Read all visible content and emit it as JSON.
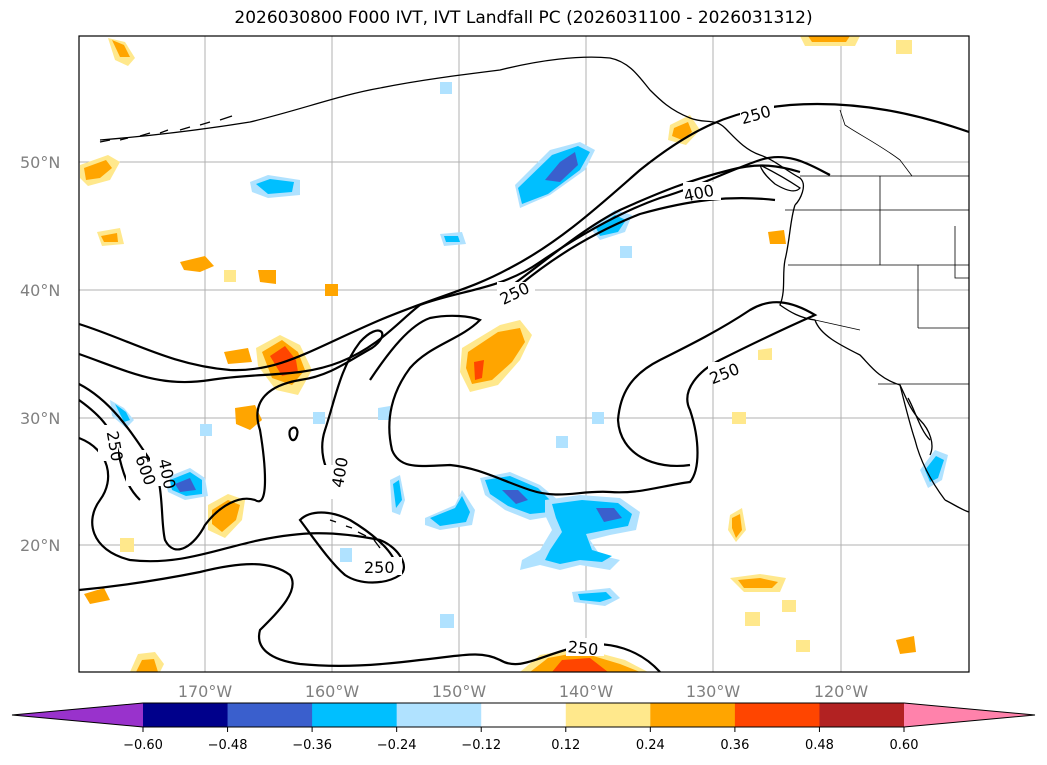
{
  "title": "2026030800 F000 IVT, IVT Landfall PC (2026031100 - 2026031312)",
  "lat_labels": [
    "50°N",
    "40°N",
    "30°N",
    "20°N"
  ],
  "lon_labels": [
    "170°W",
    "160°W",
    "150°W",
    "140°W",
    "130°W",
    "120°W"
  ],
  "contour_labels": [
    "250",
    "400",
    "250",
    "250",
    "250",
    "400",
    "400",
    "250",
    "250",
    "250",
    "600"
  ],
  "colorbar": {
    "tick_labels": [
      "−0.60",
      "−0.48",
      "−0.36",
      "−0.24",
      "−0.12",
      "0.12",
      "0.24",
      "0.36",
      "0.48",
      "0.60"
    ],
    "colors": [
      "#9932cc",
      "#00008b",
      "#3a5fcd",
      "#00bfff",
      "#b0e2ff",
      "#ffffff",
      "#ffe88c",
      "#ffa500",
      "#ff4500",
      "#b22222",
      "#ff82ab"
    ]
  },
  "colors": {
    "coastline": "#000000",
    "gridline": "#b0b0b0",
    "ivt_contour": "#000000"
  }
}
